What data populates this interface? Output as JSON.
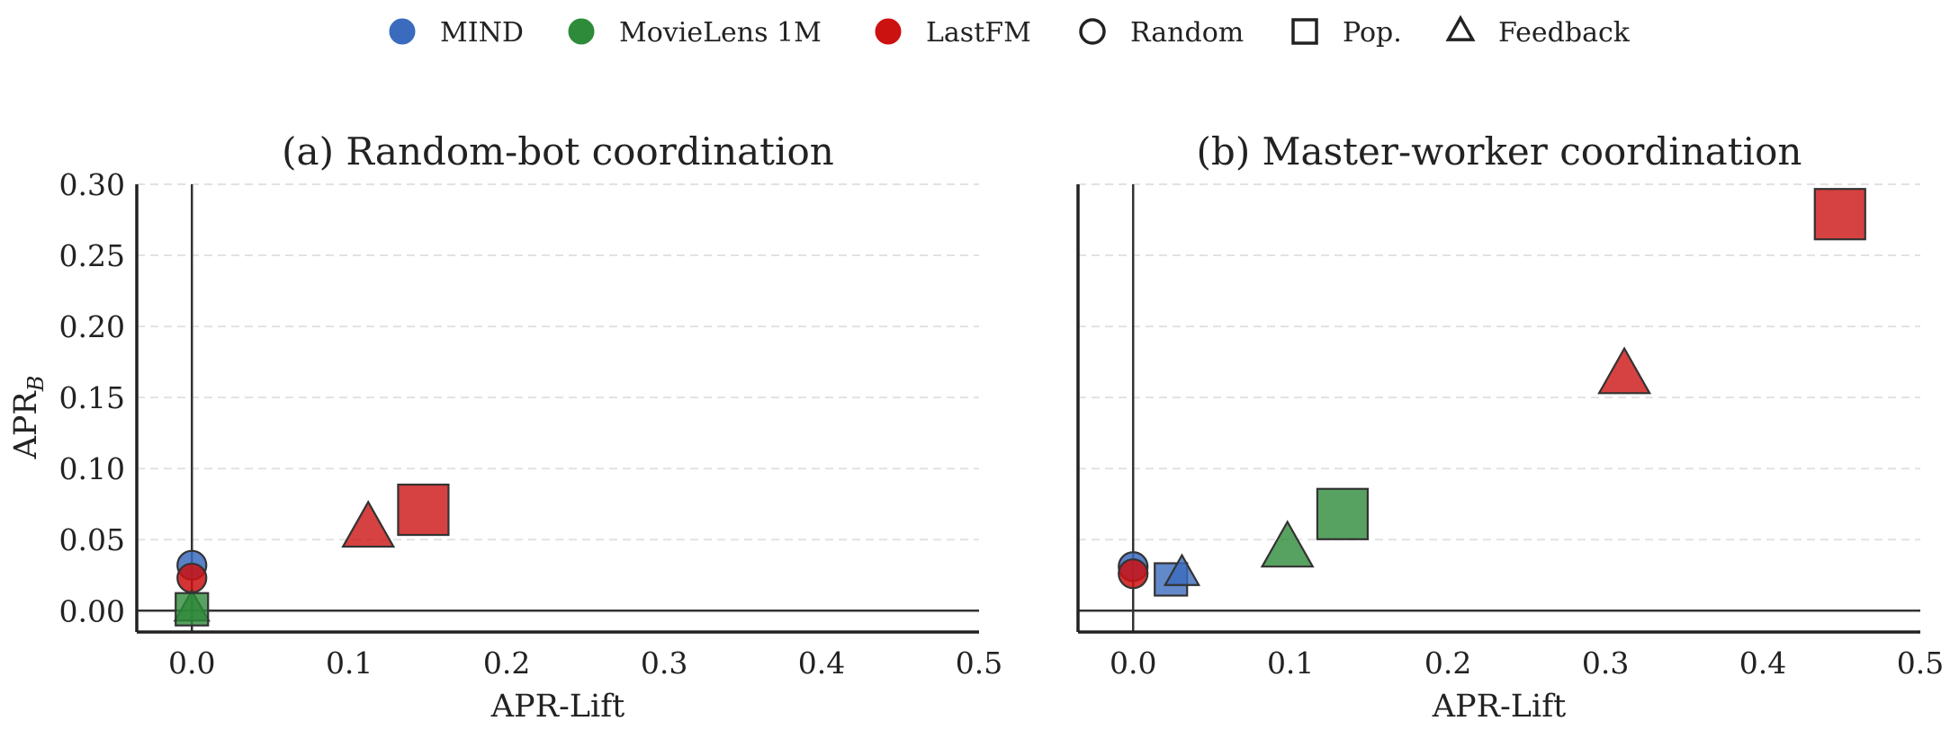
{
  "legend": {
    "datasets": [
      {
        "label": "MIND",
        "color": "#3b6bbd"
      },
      {
        "label": "MovieLens 1M",
        "color": "#2e8b3a"
      },
      {
        "label": "LastFM",
        "color": "#cc1111"
      }
    ],
    "strategies": [
      {
        "label": "Random",
        "marker": "circle"
      },
      {
        "label": "Pop.",
        "marker": "square"
      },
      {
        "label": "Feedback",
        "marker": "triangle"
      }
    ]
  },
  "chart_data": [
    {
      "type": "scatter",
      "title": "(a) Random-bot coordination",
      "xlabel": "APR-Lift",
      "ylabel": "APR",
      "ylabel_sub": "B",
      "xlim": [
        -0.035,
        0.5
      ],
      "ylim": [
        -0.015,
        0.3
      ],
      "xticks": [
        "0.0",
        "0.1",
        "0.2",
        "0.3",
        "0.4",
        "0.5"
      ],
      "yticks": [
        "0.00",
        "0.05",
        "0.10",
        "0.15",
        "0.20",
        "0.25",
        "0.30"
      ],
      "grid": "horizontal-dashed",
      "points": [
        {
          "dataset": "MIND",
          "strategy": "Random",
          "x": 0.0,
          "y": 0.032
        },
        {
          "dataset": "LastFM",
          "strategy": "Random",
          "x": 0.0,
          "y": 0.023
        },
        {
          "dataset": "MovieLens 1M",
          "strategy": "Feedback",
          "x": 0.0,
          "y": 0.001
        },
        {
          "dataset": "MovieLens 1M",
          "strategy": "Pop.",
          "x": 0.0,
          "y": 0.001
        },
        {
          "dataset": "LastFM",
          "strategy": "Feedback",
          "x": 0.112,
          "y": 0.057
        },
        {
          "dataset": "LastFM",
          "strategy": "Pop.",
          "x": 0.147,
          "y": 0.071
        }
      ]
    },
    {
      "type": "scatter",
      "title": "(b) Master-worker coordination",
      "xlabel": "APR-Lift",
      "ylabel": "",
      "ylabel_sub": "",
      "xlim": [
        -0.035,
        0.5
      ],
      "ylim": [
        -0.015,
        0.3
      ],
      "xticks": [
        "0.0",
        "0.1",
        "0.2",
        "0.3",
        "0.4",
        "0.5"
      ],
      "yticks": [],
      "grid": "horizontal-dashed",
      "points": [
        {
          "dataset": "MIND",
          "strategy": "Random",
          "x": 0.0,
          "y": 0.031
        },
        {
          "dataset": "LastFM",
          "strategy": "Random",
          "x": 0.0,
          "y": 0.026
        },
        {
          "dataset": "MIND",
          "strategy": "Pop.",
          "x": 0.024,
          "y": 0.022
        },
        {
          "dataset": "MIND",
          "strategy": "Feedback",
          "x": 0.031,
          "y": 0.026
        },
        {
          "dataset": "MovieLens 1M",
          "strategy": "Feedback",
          "x": 0.098,
          "y": 0.043
        },
        {
          "dataset": "MovieLens 1M",
          "strategy": "Pop.",
          "x": 0.133,
          "y": 0.068
        },
        {
          "dataset": "LastFM",
          "strategy": "Feedback",
          "x": 0.312,
          "y": 0.165
        },
        {
          "dataset": "LastFM",
          "strategy": "Pop.",
          "x": 0.449,
          "y": 0.279
        }
      ]
    }
  ]
}
